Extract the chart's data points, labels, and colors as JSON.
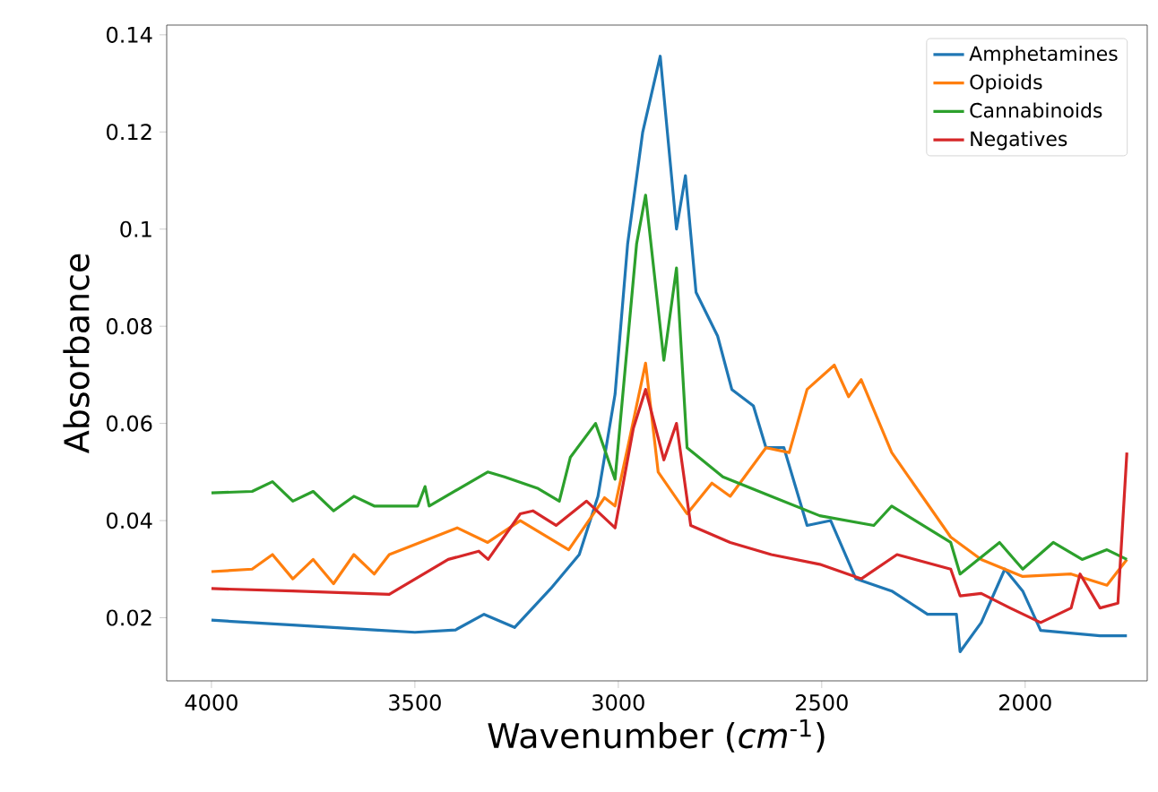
{
  "chart_data": {
    "type": "line",
    "xlabel": "Wavenumber (*cm*$^{-1}$)",
    "ylabel": "Absorbance",
    "xlim": [
      4110,
      1700
    ],
    "xticks": [
      4000,
      3500,
      3000,
      2500,
      2000
    ],
    "ylim": [
      0.007,
      0.142
    ],
    "yticks": [
      0.02,
      0.04,
      0.06,
      0.08,
      0.1,
      0.12,
      0.14
    ],
    "legend": "top right",
    "grid": false,
    "series": [
      {
        "name": "Amphetamines",
        "color": "#1f77b4",
        "x": [
          4000,
          3800,
          3600,
          3500,
          3400,
          3330,
          3255,
          3166,
          3096,
          3050,
          3008,
          2977,
          2940,
          2897,
          2857,
          2835,
          2809,
          2756,
          2721,
          2668,
          2637,
          2593,
          2536,
          2478,
          2416,
          2328,
          2240,
          2169,
          2160,
          2108,
          2050,
          2006,
          1962,
          1816,
          1750
        ],
        "values": [
          0.0195,
          0.0185,
          0.0175,
          0.017,
          0.0175,
          0.0207,
          0.018,
          0.026,
          0.033,
          0.045,
          0.066,
          0.097,
          0.12,
          0.1356,
          0.1,
          0.111,
          0.087,
          0.078,
          0.067,
          0.0636,
          0.055,
          0.055,
          0.039,
          0.04,
          0.028,
          0.0255,
          0.0207,
          0.0207,
          0.013,
          0.019,
          0.03,
          0.0255,
          0.0174,
          0.0163,
          0.0163
        ]
      },
      {
        "name": "Opioids",
        "color": "#ff7f0e",
        "x": [
          4000,
          3900,
          3850,
          3800,
          3750,
          3700,
          3650,
          3600,
          3563,
          3396,
          3321,
          3241,
          3122,
          3034,
          3008,
          2977,
          2933,
          2902,
          2831,
          2770,
          2725,
          2637,
          2580,
          2536,
          2469,
          2434,
          2403,
          2328,
          2183,
          2108,
          2006,
          1887,
          1799,
          1750
        ],
        "values": [
          0.0295,
          0.03,
          0.033,
          0.028,
          0.032,
          0.027,
          0.033,
          0.029,
          0.033,
          0.0385,
          0.0355,
          0.04,
          0.034,
          0.0447,
          0.043,
          0.055,
          0.0724,
          0.05,
          0.0414,
          0.0477,
          0.045,
          0.055,
          0.054,
          0.067,
          0.072,
          0.0655,
          0.069,
          0.054,
          0.0366,
          0.032,
          0.0285,
          0.029,
          0.0267,
          0.032
        ]
      },
      {
        "name": "Cannabinoids",
        "color": "#2ca02c",
        "x": [
          4000,
          3900,
          3850,
          3800,
          3750,
          3700,
          3650,
          3600,
          3493,
          3475,
          3465,
          3321,
          3280,
          3197,
          3145,
          3118,
          3056,
          3008,
          2955,
          2933,
          2888,
          2857,
          2831,
          2743,
          2624,
          2505,
          2372,
          2328,
          2183,
          2160,
          2063,
          2006,
          1931,
          1860,
          1799,
          1750
        ],
        "values": [
          0.0457,
          0.046,
          0.048,
          0.044,
          0.046,
          0.042,
          0.045,
          0.043,
          0.043,
          0.047,
          0.043,
          0.05,
          0.049,
          0.0466,
          0.044,
          0.053,
          0.06,
          0.0485,
          0.097,
          0.107,
          0.073,
          0.092,
          0.055,
          0.049,
          0.045,
          0.041,
          0.039,
          0.043,
          0.0355,
          0.029,
          0.0355,
          0.03,
          0.0355,
          0.032,
          0.034,
          0.032
        ]
      },
      {
        "name": "Negatives",
        "color": "#d62728",
        "x": [
          4000,
          3800,
          3563,
          3418,
          3343,
          3320,
          3241,
          3210,
          3153,
          3078,
          3008,
          2963,
          2933,
          2888,
          2857,
          2822,
          2725,
          2624,
          2505,
          2403,
          2315,
          2183,
          2160,
          2108,
          2037,
          1962,
          1887,
          1865,
          1816,
          1772,
          1750
        ],
        "values": [
          0.026,
          0.0255,
          0.0248,
          0.032,
          0.0337,
          0.032,
          0.0414,
          0.042,
          0.039,
          0.044,
          0.0385,
          0.059,
          0.067,
          0.0525,
          0.06,
          0.039,
          0.0355,
          0.033,
          0.031,
          0.028,
          0.033,
          0.03,
          0.0245,
          0.025,
          0.022,
          0.019,
          0.022,
          0.029,
          0.022,
          0.023,
          0.054
        ]
      }
    ]
  }
}
